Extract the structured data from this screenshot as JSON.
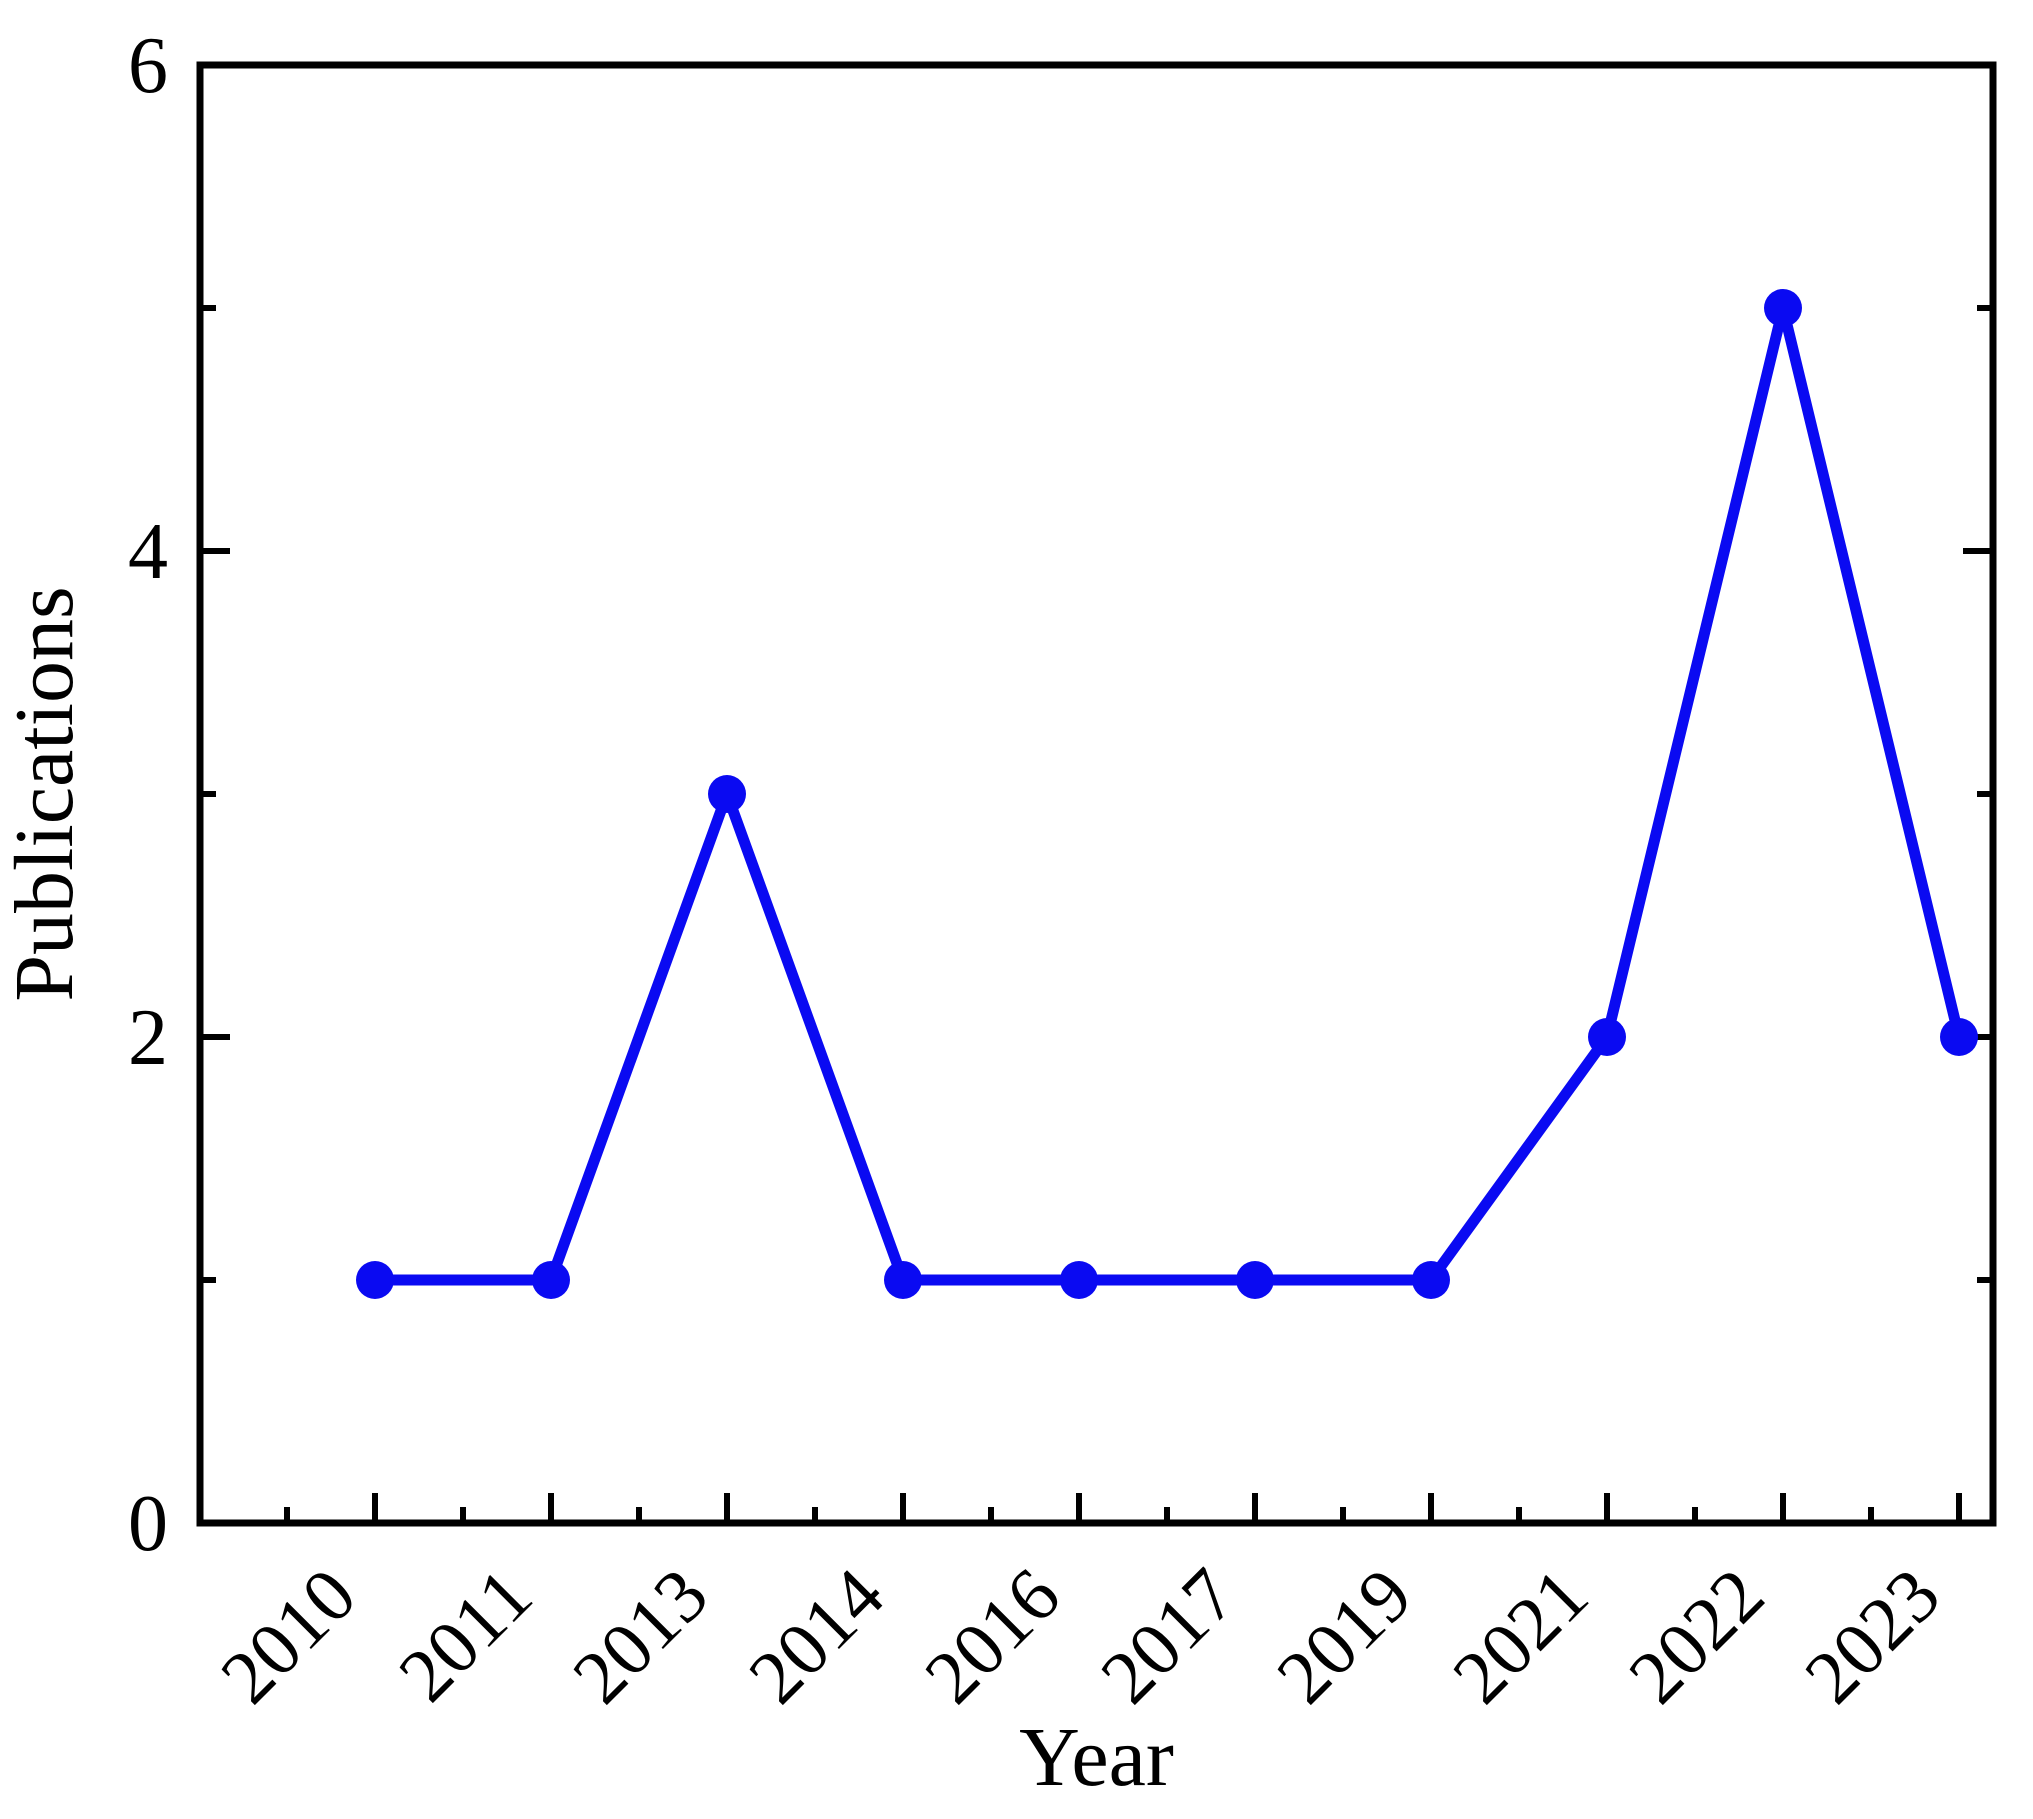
{
  "figure": {
    "description": "Line chart of publications per year",
    "background_color": "#ffffff"
  },
  "chart_data": {
    "type": "line",
    "categories": [
      "2010",
      "2011",
      "2013",
      "2014",
      "2016",
      "2017",
      "2019",
      "2021",
      "2022",
      "2023"
    ],
    "values": [
      1,
      1,
      3,
      1,
      1,
      1,
      1,
      2,
      5,
      2
    ],
    "series_name": "Publications",
    "title": "",
    "xlabel": "Year",
    "ylabel": "Publications",
    "ylim": [
      0,
      6
    ],
    "y_major_tick_labels": [
      "0",
      "2",
      "4",
      "6"
    ],
    "y_major_tick_values": [
      0,
      2,
      4,
      6
    ],
    "y_minor_tick_values": [
      1,
      3,
      5
    ],
    "x_tick_rotation_deg": -45,
    "grid": "off",
    "legend": "none",
    "line_color": "#0a0af2",
    "marker_color": "#0a0af2",
    "marker_shape": "circle",
    "axis_color": "#000000",
    "text_color": "#000000",
    "axes_with_ticks": [
      "left",
      "bottom",
      "right"
    ],
    "tick_direction": "in"
  }
}
